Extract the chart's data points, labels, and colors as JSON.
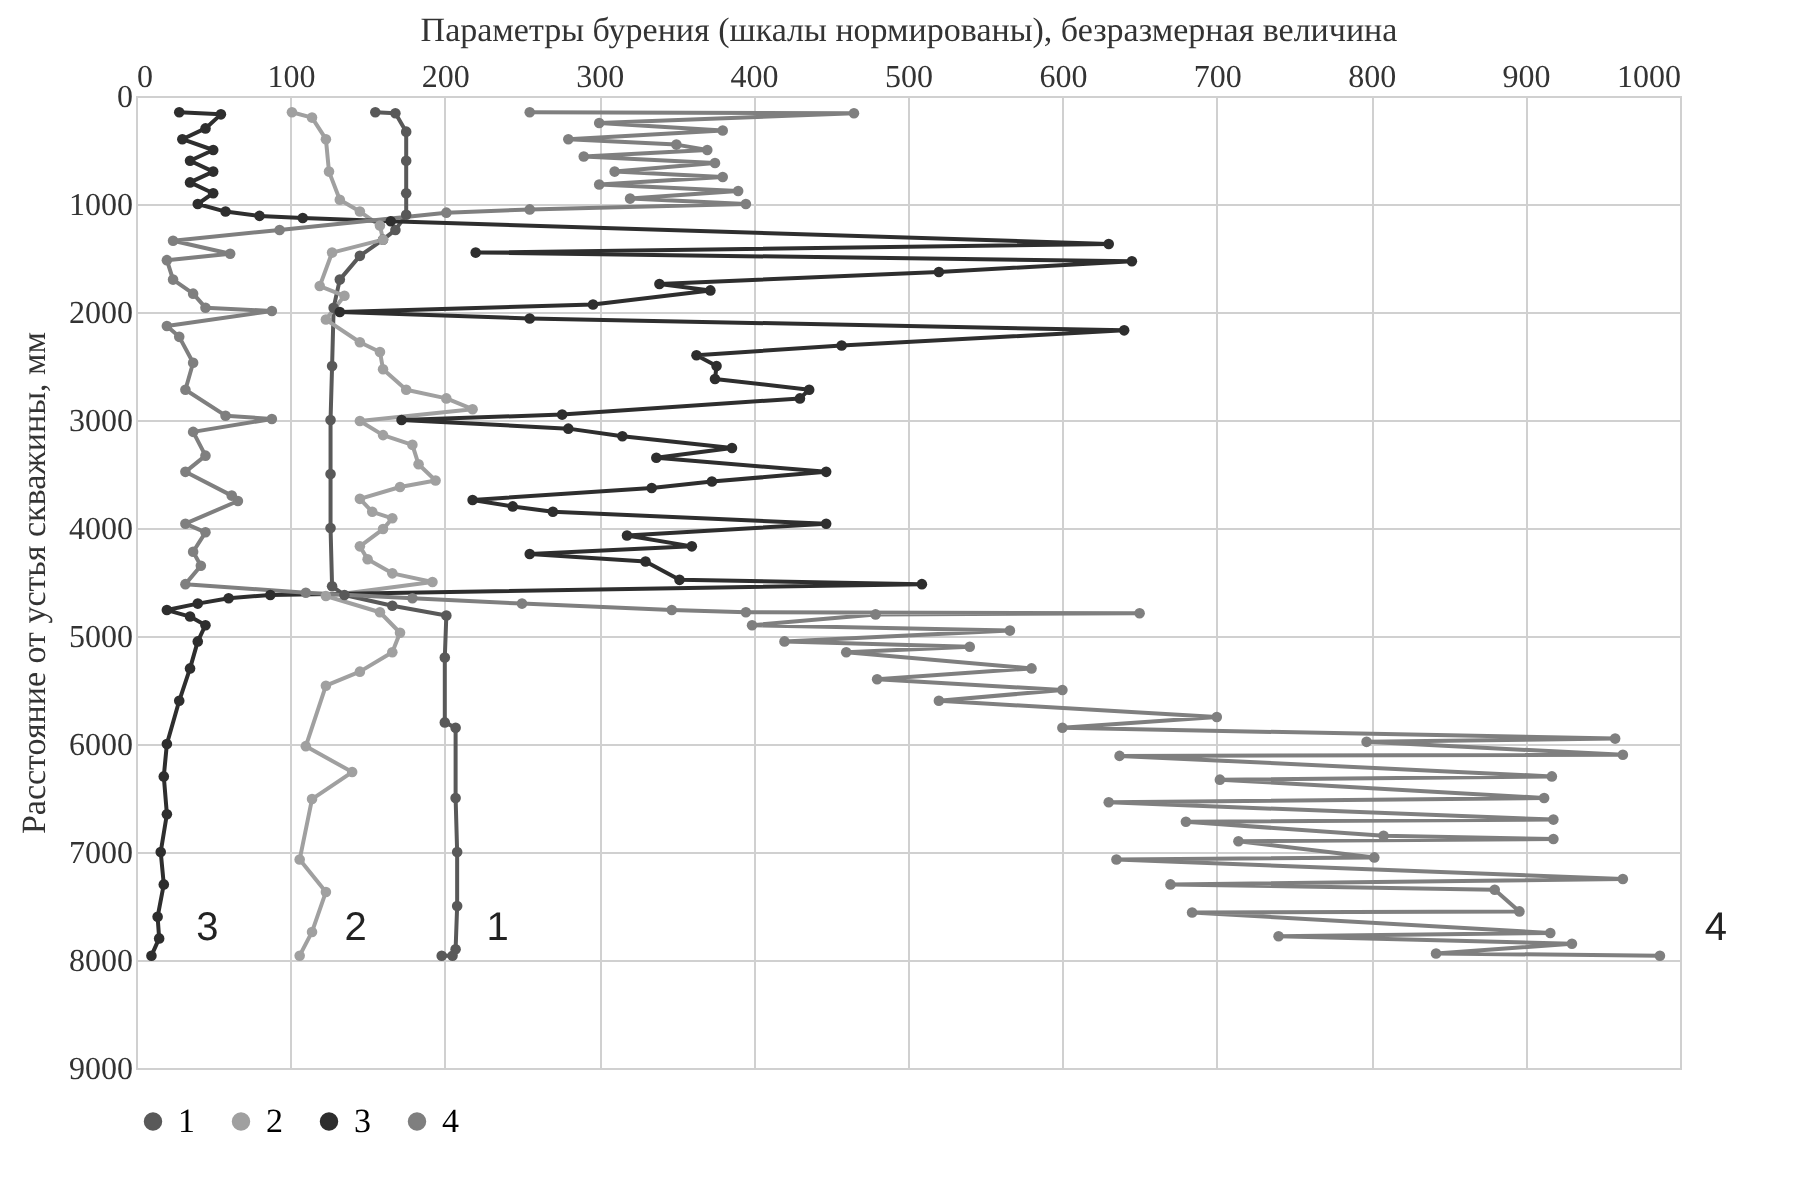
{
  "chart_data": {
    "type": "line",
    "xlabel": "Параметры бурения (шкалы нормированы), безразмерная величина",
    "ylabel": "Расстояние от устья скважины, мм",
    "xlim": [
      0,
      1000
    ],
    "xticks": [
      0,
      100,
      200,
      300,
      400,
      500,
      600,
      700,
      800,
      900,
      1000
    ],
    "ylim": [
      9000,
      0
    ],
    "yticks": [
      0,
      1000,
      2000,
      3000,
      4000,
      5000,
      6000,
      7000,
      8000,
      9000
    ],
    "grid": true,
    "legend": "bottom",
    "marker": "circle",
    "line_style": "solid",
    "series": [
      {
        "name": "1",
        "color": "#595959",
        "x": [
          155,
          168,
          175,
          175,
          175,
          175,
          168,
          160,
          145,
          132,
          128,
          127,
          126,
          126,
          126,
          127,
          135,
          166,
          201,
          200,
          200,
          207,
          207,
          208,
          208,
          207,
          205,
          198
        ],
        "values": [
          150,
          160,
          330,
          600,
          900,
          1100,
          1240,
          1330,
          1480,
          1700,
          1960,
          2500,
          3000,
          3500,
          4000,
          4540,
          4620,
          4720,
          4810,
          5200,
          5800,
          5850,
          6500,
          7000,
          7500,
          7900,
          7960,
          7960
        ]
      },
      {
        "name": "2",
        "color": "#a0a0a0",
        "x": [
          101,
          114,
          123,
          125,
          132,
          145,
          158,
          160,
          127,
          119,
          135,
          123,
          145,
          158,
          160,
          175,
          201,
          218,
          145,
          160,
          179,
          183,
          194,
          171,
          145,
          153,
          166,
          160,
          145,
          150,
          166,
          192,
          123,
          158,
          171,
          166,
          145,
          123,
          110,
          140,
          114,
          106,
          123,
          114,
          106
        ],
        "values": [
          150,
          200,
          400,
          700,
          960,
          1070,
          1200,
          1330,
          1450,
          1760,
          1850,
          2070,
          2280,
          2370,
          2530,
          2720,
          2800,
          2900,
          3010,
          3140,
          3230,
          3410,
          3560,
          3620,
          3730,
          3850,
          3910,
          4010,
          4170,
          4290,
          4420,
          4500,
          4630,
          4780,
          4970,
          5150,
          5330,
          5460,
          6020,
          6260,
          6510,
          7070,
          7370,
          7740,
          7960
        ]
      },
      {
        "name": "3",
        "color": "#2e2e2e",
        "x": [
          28,
          55,
          45,
          30,
          50,
          35,
          50,
          35,
          50,
          40,
          58,
          80,
          108,
          165,
          630,
          220,
          645,
          520,
          339,
          372,
          296,
          132,
          255,
          640,
          457,
          363,
          376,
          375,
          436,
          430,
          276,
          172,
          280,
          315,
          386,
          337,
          447,
          373,
          334,
          218,
          244,
          270,
          447,
          318,
          360,
          255,
          330,
          352,
          509,
          87,
          60,
          40,
          20,
          35,
          45,
          40,
          35,
          28,
          20,
          18,
          20,
          16,
          18,
          14,
          15,
          10
        ],
        "values": [
          150,
          170,
          300,
          400,
          500,
          600,
          700,
          800,
          900,
          1000,
          1070,
          1110,
          1130,
          1160,
          1370,
          1450,
          1530,
          1630,
          1740,
          1800,
          1930,
          2000,
          2060,
          2170,
          2310,
          2400,
          2500,
          2620,
          2720,
          2800,
          2950,
          3000,
          3080,
          3150,
          3260,
          3350,
          3480,
          3570,
          3630,
          3740,
          3800,
          3850,
          3960,
          4070,
          4170,
          4240,
          4310,
          4480,
          4520,
          4620,
          4650,
          4700,
          4760,
          4820,
          4900,
          5050,
          5300,
          5600,
          6000,
          6300,
          6650,
          7000,
          7300,
          7600,
          7800,
          7960
        ]
      },
      {
        "name": "4",
        "color": "#7f7f7f",
        "x": [
          255,
          465,
          300,
          380,
          280,
          350,
          370,
          290,
          375,
          310,
          380,
          300,
          390,
          320,
          395,
          255,
          201,
          93,
          24,
          61,
          20,
          24,
          37,
          45,
          88,
          20,
          28,
          37,
          32,
          58,
          88,
          37,
          45,
          32,
          62,
          66,
          32,
          45,
          37,
          42,
          32,
          110,
          179,
          250,
          347,
          395,
          650,
          479,
          399,
          566,
          420,
          540,
          460,
          580,
          480,
          600,
          520,
          700,
          600,
          958,
          797,
          963,
          637,
          917,
          702,
          912,
          630,
          918,
          680,
          808,
          918,
          714,
          802,
          635,
          963,
          670,
          880,
          896,
          684,
          916,
          740,
          930,
          842,
          987
        ],
        "values": [
          150,
          160,
          250,
          320,
          400,
          450,
          500,
          560,
          620,
          700,
          750,
          820,
          880,
          950,
          1000,
          1050,
          1080,
          1240,
          1340,
          1460,
          1520,
          1700,
          1830,
          1960,
          1990,
          2130,
          2230,
          2470,
          2720,
          2960,
          2990,
          3110,
          3330,
          3480,
          3700,
          3750,
          3960,
          4040,
          4220,
          4350,
          4520,
          4600,
          4650,
          4700,
          4760,
          4780,
          4790,
          4800,
          4900,
          4950,
          5050,
          5100,
          5150,
          5300,
          5400,
          5500,
          5600,
          5750,
          5850,
          5950,
          5980,
          6100,
          6110,
          6300,
          6330,
          6500,
          6540,
          6700,
          6720,
          6850,
          6880,
          6900,
          7050,
          7070,
          7250,
          7300,
          7350,
          7550,
          7560,
          7750,
          7780,
          7850,
          7940,
          7960
        ]
      }
    ]
  }
}
